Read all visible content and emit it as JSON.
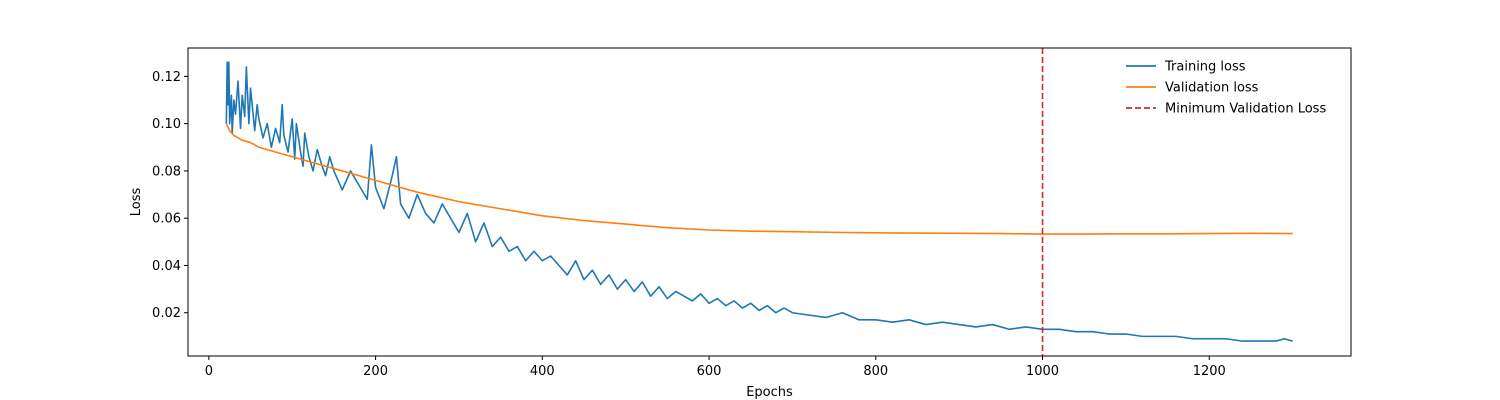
{
  "chart_data": {
    "type": "line",
    "title": "",
    "xlabel": "Epochs",
    "ylabel": "Loss",
    "xlim": [
      -25,
      1370
    ],
    "ylim": [
      0.0017,
      0.132
    ],
    "x_ticks": [
      0,
      200,
      400,
      600,
      800,
      1000,
      1200
    ],
    "y_ticks": [
      0.02,
      0.04,
      0.06,
      0.08,
      0.1,
      0.12
    ],
    "x_tick_labels": [
      "0",
      "200",
      "400",
      "600",
      "800",
      "1000",
      "1200"
    ],
    "y_tick_labels": [
      "0.02",
      "0.04",
      "0.06",
      "0.08",
      "0.10",
      "0.12"
    ],
    "grid": false,
    "legend_position": "upper-right",
    "series": [
      {
        "name": "Training loss",
        "color": "#1f77b4",
        "style": "solid",
        "x": [
          21,
          22,
          23,
          24,
          25,
          27,
          28,
          30,
          32,
          35,
          38,
          40,
          43,
          45,
          48,
          50,
          55,
          58,
          60,
          65,
          70,
          75,
          80,
          85,
          88,
          90,
          95,
          100,
          103,
          105,
          110,
          113,
          115,
          120,
          125,
          130,
          135,
          140,
          145,
          150,
          160,
          170,
          180,
          190,
          195,
          200,
          210,
          220,
          225,
          230,
          240,
          250,
          260,
          270,
          280,
          290,
          300,
          310,
          320,
          330,
          340,
          350,
          360,
          370,
          380,
          390,
          400,
          410,
          420,
          430,
          440,
          450,
          460,
          470,
          480,
          490,
          500,
          510,
          520,
          530,
          540,
          550,
          560,
          570,
          580,
          590,
          600,
          610,
          620,
          630,
          640,
          650,
          660,
          670,
          680,
          690,
          700,
          720,
          740,
          760,
          780,
          800,
          820,
          840,
          860,
          880,
          900,
          920,
          940,
          960,
          980,
          1000,
          1020,
          1040,
          1060,
          1080,
          1100,
          1120,
          1140,
          1160,
          1180,
          1200,
          1220,
          1240,
          1260,
          1280,
          1290,
          1300
        ],
        "y": [
          0.1,
          0.126,
          0.108,
          0.126,
          0.1,
          0.112,
          0.096,
          0.11,
          0.104,
          0.118,
          0.098,
          0.112,
          0.103,
          0.124,
          0.1,
          0.115,
          0.097,
          0.108,
          0.102,
          0.094,
          0.1,
          0.09,
          0.098,
          0.092,
          0.108,
          0.095,
          0.088,
          0.102,
          0.085,
          0.1,
          0.088,
          0.082,
          0.096,
          0.086,
          0.08,
          0.089,
          0.083,
          0.078,
          0.086,
          0.08,
          0.072,
          0.08,
          0.074,
          0.068,
          0.091,
          0.073,
          0.064,
          0.078,
          0.086,
          0.066,
          0.06,
          0.07,
          0.062,
          0.058,
          0.066,
          0.06,
          0.054,
          0.062,
          0.05,
          0.058,
          0.048,
          0.052,
          0.046,
          0.048,
          0.042,
          0.046,
          0.042,
          0.044,
          0.04,
          0.036,
          0.042,
          0.034,
          0.038,
          0.032,
          0.036,
          0.03,
          0.034,
          0.029,
          0.033,
          0.027,
          0.031,
          0.026,
          0.029,
          0.027,
          0.025,
          0.028,
          0.024,
          0.026,
          0.023,
          0.025,
          0.022,
          0.024,
          0.021,
          0.023,
          0.02,
          0.022,
          0.02,
          0.019,
          0.018,
          0.02,
          0.017,
          0.017,
          0.016,
          0.017,
          0.015,
          0.016,
          0.015,
          0.014,
          0.015,
          0.013,
          0.014,
          0.013,
          0.013,
          0.012,
          0.012,
          0.011,
          0.011,
          0.01,
          0.01,
          0.01,
          0.009,
          0.009,
          0.009,
          0.008,
          0.008,
          0.008,
          0.009,
          0.008
        ]
      },
      {
        "name": "Validation loss",
        "color": "#ff7f0e",
        "style": "solid",
        "x": [
          21,
          25,
          30,
          40,
          50,
          60,
          80,
          100,
          120,
          150,
          200,
          250,
          300,
          350,
          400,
          450,
          500,
          550,
          600,
          650,
          700,
          750,
          800,
          850,
          900,
          950,
          1000,
          1050,
          1100,
          1150,
          1200,
          1250,
          1300
        ],
        "y": [
          0.1,
          0.097,
          0.095,
          0.093,
          0.092,
          0.09,
          0.088,
          0.086,
          0.084,
          0.081,
          0.076,
          0.071,
          0.067,
          0.064,
          0.061,
          0.059,
          0.0575,
          0.056,
          0.055,
          0.0545,
          0.0543,
          0.054,
          0.0538,
          0.0537,
          0.0536,
          0.0535,
          0.0533,
          0.0533,
          0.0534,
          0.0534,
          0.0535,
          0.0536,
          0.0535
        ]
      }
    ],
    "vlines": [
      {
        "name": "Minimum Validation Loss",
        "x": 1000,
        "color": "#d62728",
        "style": "dashed"
      }
    ]
  }
}
